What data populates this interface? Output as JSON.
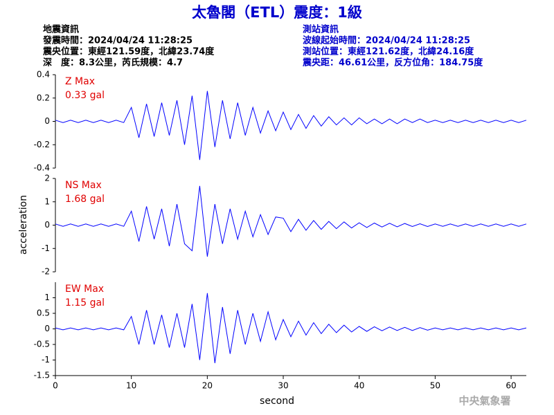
{
  "header": {
    "title": "太魯閣（ETL）震度：1級",
    "left": [
      "地震資訊",
      "發震時間：2024/04/24 11:28:25",
      "震央位置：東經121.59度，北緯23.74度",
      "深　度：8.3公里，芮氏規模：4.7"
    ],
    "right": [
      "測站資訊",
      "波線起始時間：2024/04/24 11:28:25",
      "測站位置：東經121.62度，北緯24.16度",
      "震央距：46.61公里，反方位角：184.75度"
    ],
    "ylabel": "acceleration",
    "watermark": "中央氣象署"
  },
  "chart_data": [
    {
      "type": "line",
      "annotation": [
        "Z Max",
        "0.33 gal"
      ],
      "color": "#0000ff",
      "xlim": [
        0,
        62
      ],
      "ylim": [
        -0.4,
        0.4
      ],
      "yticks": [
        -0.4,
        -0.2,
        0,
        0.2,
        0.4
      ],
      "x": [
        0,
        1,
        2,
        3,
        4,
        5,
        6,
        7,
        8,
        9,
        10,
        11,
        12,
        13,
        14,
        15,
        16,
        17,
        18,
        19,
        20,
        21,
        22,
        23,
        24,
        25,
        26,
        27,
        28,
        29,
        30,
        31,
        32,
        33,
        34,
        35,
        36,
        37,
        38,
        39,
        40,
        41,
        42,
        43,
        44,
        45,
        46,
        47,
        48,
        49,
        50,
        51,
        52,
        53,
        54,
        55,
        56,
        57,
        58,
        59,
        60,
        61,
        62
      ],
      "values": [
        0.01,
        -0.01,
        0.01,
        -0.01,
        0.01,
        -0.01,
        0.01,
        -0.01,
        0.01,
        -0.01,
        0.12,
        -0.14,
        0.15,
        -0.13,
        0.16,
        -0.12,
        0.18,
        -0.2,
        0.22,
        -0.33,
        0.26,
        -0.22,
        0.18,
        -0.15,
        0.16,
        -0.12,
        0.12,
        -0.1,
        0.09,
        -0.08,
        0.08,
        -0.07,
        0.06,
        -0.06,
        0.05,
        -0.04,
        0.04,
        -0.03,
        0.03,
        -0.03,
        0.03,
        -0.02,
        0.02,
        -0.02,
        0.02,
        -0.02,
        0.02,
        -0.01,
        0.02,
        -0.01,
        0.01,
        -0.01,
        0.01,
        -0.01,
        0.01,
        -0.01,
        0.01,
        -0.01,
        0.01,
        -0.01,
        0.01,
        -0.01,
        0.01
      ]
    },
    {
      "type": "line",
      "annotation": [
        "NS Max",
        "1.68 gal"
      ],
      "color": "#0000ff",
      "xlim": [
        0,
        62
      ],
      "ylim": [
        -2,
        2
      ],
      "yticks": [
        -2,
        -1,
        0,
        1,
        2
      ],
      "x": [
        0,
        1,
        2,
        3,
        4,
        5,
        6,
        7,
        8,
        9,
        10,
        11,
        12,
        13,
        14,
        15,
        16,
        17,
        18,
        19,
        20,
        21,
        22,
        23,
        24,
        25,
        26,
        27,
        28,
        29,
        30,
        31,
        32,
        33,
        34,
        35,
        36,
        37,
        38,
        39,
        40,
        41,
        42,
        43,
        44,
        45,
        46,
        47,
        48,
        49,
        50,
        51,
        52,
        53,
        54,
        55,
        56,
        57,
        58,
        59,
        60,
        61,
        62
      ],
      "values": [
        0.05,
        -0.05,
        0.05,
        -0.05,
        0.05,
        -0.05,
        0.05,
        -0.05,
        0.05,
        -0.05,
        0.6,
        -0.7,
        0.8,
        -0.6,
        0.7,
        -0.9,
        0.9,
        -0.8,
        -1.1,
        1.68,
        -1.35,
        0.9,
        -0.8,
        0.7,
        -0.6,
        0.6,
        -0.5,
        0.45,
        -0.4,
        0.35,
        0.3,
        -0.28,
        0.25,
        -0.22,
        0.2,
        -0.18,
        0.16,
        -0.15,
        0.14,
        -0.12,
        0.1,
        -0.1,
        0.09,
        -0.08,
        0.08,
        -0.07,
        0.07,
        -0.06,
        0.06,
        -0.06,
        0.05,
        -0.05,
        0.05,
        -0.05,
        0.05,
        -0.05,
        0.05,
        -0.05,
        0.05,
        -0.05,
        0.05,
        -0.05,
        0.05
      ]
    },
    {
      "type": "line",
      "annotation": [
        "EW Max",
        "1.15 gal"
      ],
      "color": "#0000ff",
      "xlim": [
        0,
        62
      ],
      "ylim": [
        -1.5,
        1.5
      ],
      "yticks": [
        -1.5,
        -1,
        -0.5,
        0,
        0.5,
        1
      ],
      "xticks": [
        0,
        10,
        20,
        30,
        40,
        50,
        60
      ],
      "xlabel": "second",
      "x": [
        0,
        1,
        2,
        3,
        4,
        5,
        6,
        7,
        8,
        9,
        10,
        11,
        12,
        13,
        14,
        15,
        16,
        17,
        18,
        19,
        20,
        21,
        22,
        23,
        24,
        25,
        26,
        27,
        28,
        29,
        30,
        31,
        32,
        33,
        34,
        35,
        36,
        37,
        38,
        39,
        40,
        41,
        42,
        43,
        44,
        45,
        46,
        47,
        48,
        49,
        50,
        51,
        52,
        53,
        54,
        55,
        56,
        57,
        58,
        59,
        60,
        61,
        62
      ],
      "values": [
        0.03,
        -0.03,
        0.03,
        -0.03,
        0.03,
        -0.03,
        0.03,
        -0.03,
        0.03,
        -0.03,
        0.4,
        -0.5,
        0.6,
        -0.5,
        0.45,
        -0.6,
        0.5,
        -0.6,
        0.8,
        -1.0,
        1.15,
        -1.1,
        0.7,
        -0.8,
        0.6,
        -0.5,
        0.5,
        -0.4,
        0.55,
        -0.35,
        0.3,
        -0.25,
        0.25,
        -0.2,
        0.2,
        -0.15,
        0.15,
        -0.12,
        0.12,
        -0.1,
        0.08,
        -0.08,
        0.07,
        -0.06,
        0.06,
        -0.05,
        0.05,
        -0.05,
        0.04,
        -0.04,
        0.03,
        -0.03,
        0.03,
        -0.03,
        0.03,
        -0.03,
        0.03,
        -0.03,
        0.03,
        -0.03,
        0.03,
        -0.03,
        0.03
      ]
    }
  ]
}
